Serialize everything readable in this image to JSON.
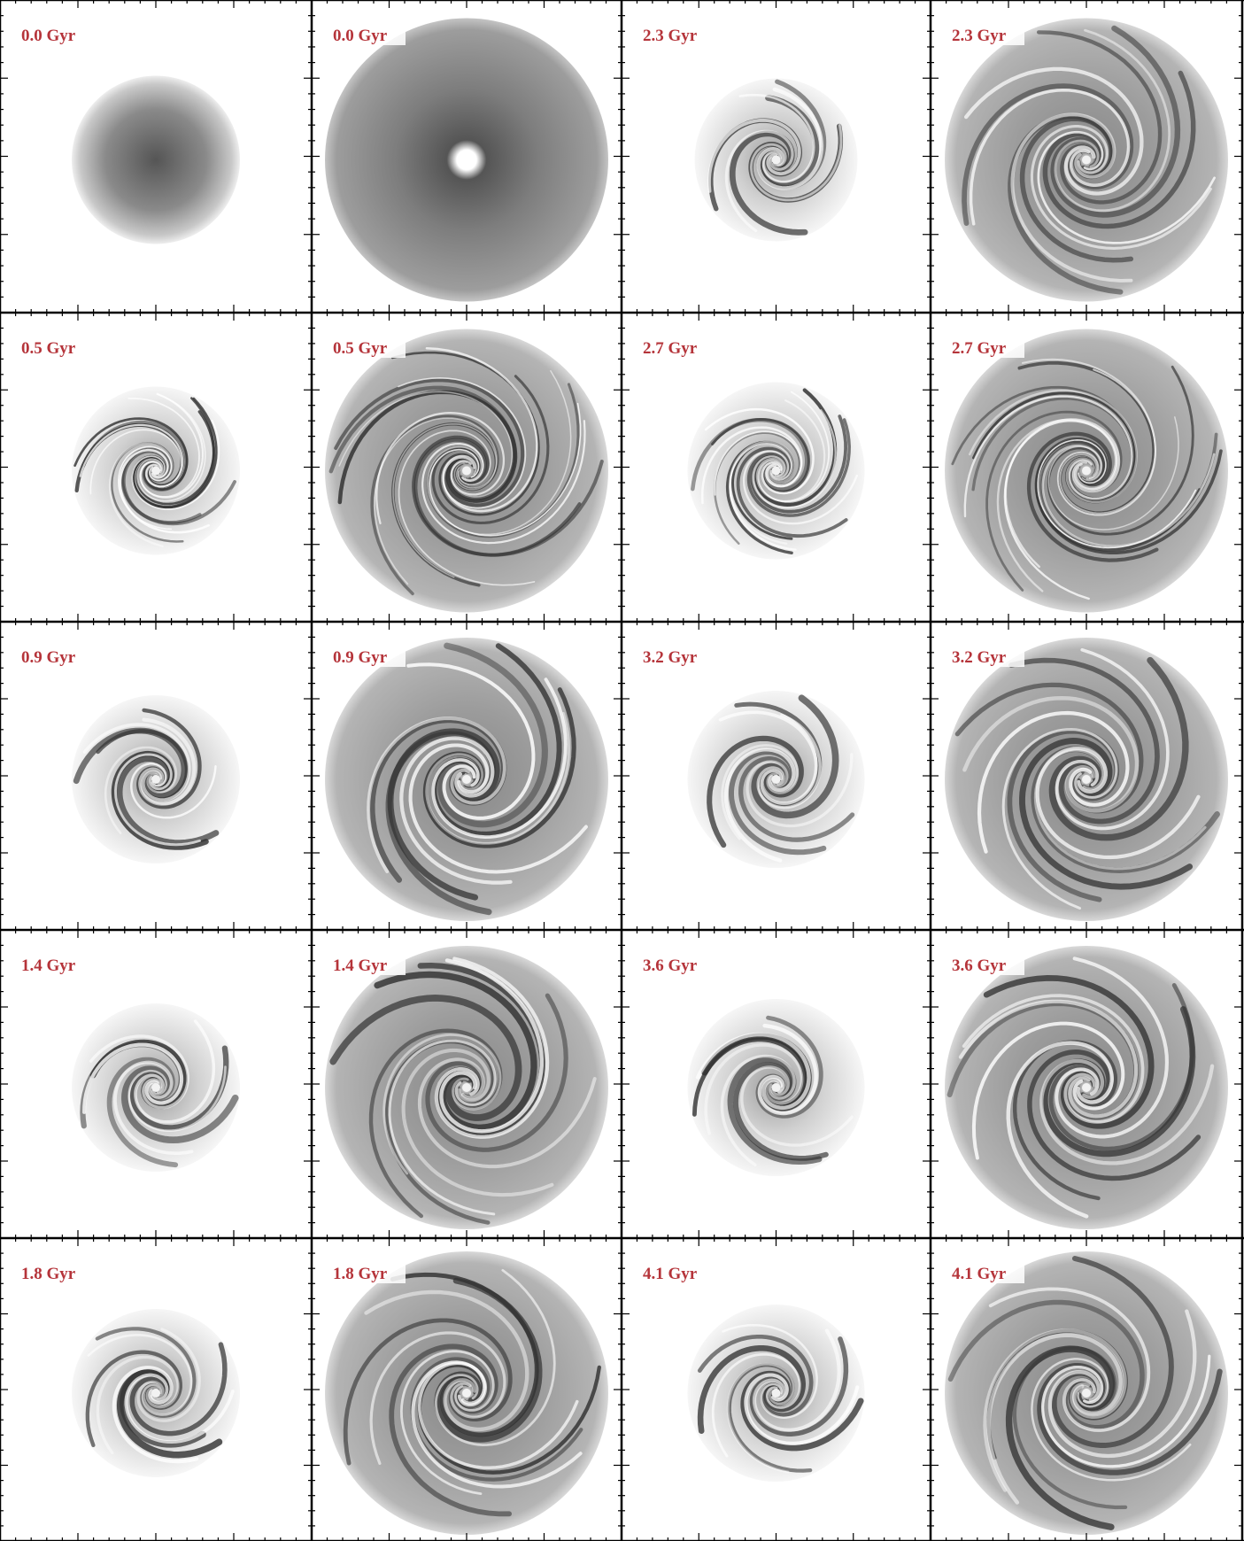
{
  "panels": {
    "rows": [
      [
        "0.0 Gyr",
        "0.0 Gyr",
        "2.3 Gyr",
        "2.3 Gyr"
      ],
      [
        "0.5 Gyr",
        "0.5 Gyr",
        "2.7 Gyr",
        "2.7 Gyr"
      ],
      [
        "0.9 Gyr",
        "0.9 Gyr",
        "3.2 Gyr",
        "3.2 Gyr"
      ],
      [
        "1.4 Gyr",
        "1.4 Gyr",
        "3.6 Gyr",
        "3.6 Gyr"
      ],
      [
        "1.8 Gyr",
        "1.8 Gyr",
        "4.1 Gyr",
        "4.1 Gyr"
      ]
    ]
  }
}
